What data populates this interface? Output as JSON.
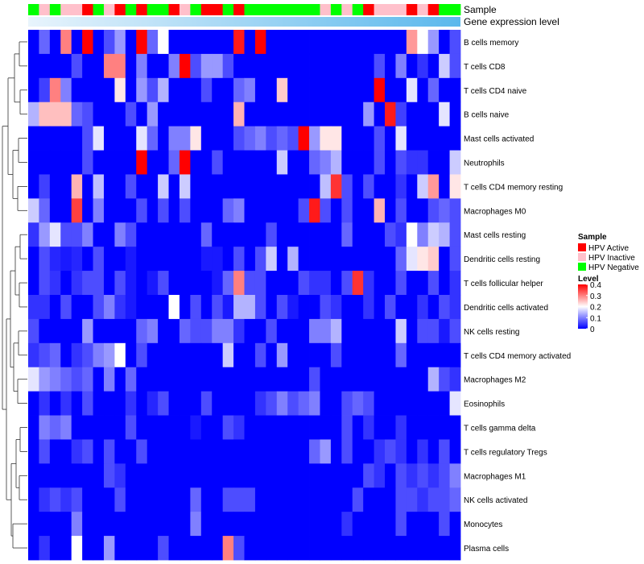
{
  "chart_data": {
    "type": "heatmap",
    "annotation_tracks": [
      "Sample",
      "Gene expression level"
    ],
    "legend_sample": {
      "title": "Sample",
      "entries": [
        {
          "label": "HPV Active",
          "color": "#ff0000"
        },
        {
          "label": "HPV Inactive",
          "color": "#ffc0cb"
        },
        {
          "label": "HPV Negative",
          "color": "#00ff00"
        }
      ]
    },
    "legend_level": {
      "title": "Level",
      "ticks": [
        "0.4",
        "0.3",
        "0.2",
        "0.1",
        "0"
      ],
      "tick_values": [
        0.4,
        0.3,
        0.2,
        0.1,
        0
      ],
      "range": [
        0,
        0.4
      ],
      "colors": [
        "#0000ff",
        "#ffffff",
        "#ff0000"
      ]
    },
    "sample_groups": [
      "N",
      "I",
      "N",
      "I",
      "I",
      "A",
      "N",
      "I",
      "A",
      "N",
      "A",
      "N",
      "N",
      "A",
      "I",
      "N",
      "A",
      "A",
      "N",
      "A",
      "N",
      "N",
      "N",
      "N",
      "N",
      "N",
      "N",
      "I",
      "N",
      "I",
      "N",
      "A",
      "I",
      "I",
      "I",
      "A",
      "I",
      "A",
      "N",
      "N"
    ],
    "expression_gradient": [
      "#e8f4fc",
      "#5bb8ec"
    ],
    "row_labels": [
      "B cells memory",
      "T cells CD8",
      "T cells CD4 naive",
      "B cells naive",
      "Mast cells activated",
      "Neutrophils",
      "T cells CD4 memory resting",
      "Macrophages M0",
      "Mast cells resting",
      "Dendritic cells resting",
      "T cells follicular helper",
      "Dendritic cells activated",
      "NK cells resting",
      "T cells CD4 memory activated",
      "Macrophages M2",
      "Eosinophils",
      "T cells gamma delta",
      "T cells regulatory  Tregs",
      "Macrophages M1",
      "NK cells activated",
      "Monocytes",
      "Plasma cells"
    ],
    "values": [
      [
        0,
        0.08,
        0,
        0.3,
        0,
        0.4,
        0,
        0.06,
        0.12,
        0,
        0.4,
        0.08,
        0.2,
        0,
        0,
        0,
        0,
        0,
        0,
        0.38,
        0,
        0.4,
        0,
        0,
        0,
        0,
        0,
        0,
        0,
        0,
        0,
        0,
        0,
        0,
        0,
        0.28,
        0.2,
        0.12,
        0,
        0.06
      ],
      [
        0,
        0,
        0,
        0,
        0.06,
        0,
        0,
        0.3,
        0.3,
        0,
        0.1,
        0,
        0,
        0.1,
        0.4,
        0.06,
        0.12,
        0.12,
        0.06,
        0,
        0,
        0,
        0,
        0,
        0,
        0,
        0,
        0,
        0,
        0,
        0,
        0,
        0.06,
        0,
        0.1,
        0,
        0.04,
        0,
        0.16,
        0.06
      ],
      [
        0,
        0.05,
        0.3,
        0.1,
        0,
        0,
        0,
        0,
        0.22,
        0,
        0.12,
        0.06,
        0.14,
        0,
        0,
        0,
        0.06,
        0,
        0,
        0.08,
        0.1,
        0,
        0,
        0.24,
        0,
        0,
        0,
        0,
        0,
        0,
        0,
        0,
        0.4,
        0,
        0,
        0.18,
        0,
        0.08,
        0,
        0
      ],
      [
        0.14,
        0.25,
        0.25,
        0.25,
        0.08,
        0.06,
        0,
        0,
        0,
        0.06,
        0,
        0.12,
        0,
        0,
        0,
        0,
        0,
        0,
        0,
        0.26,
        0,
        0,
        0,
        0,
        0,
        0,
        0,
        0,
        0,
        0,
        0,
        0.12,
        0,
        0.38,
        0.05,
        0,
        0,
        0,
        0.18,
        0
      ],
      [
        0,
        0,
        0,
        0,
        0,
        0.06,
        0.18,
        0,
        0,
        0,
        0.18,
        0.08,
        0,
        0.1,
        0.1,
        0.22,
        0,
        0,
        0,
        0.06,
        0.08,
        0.1,
        0.06,
        0.08,
        0.06,
        0.4,
        0.12,
        0.22,
        0.22,
        0,
        0,
        0,
        0.06,
        0,
        0.18,
        0,
        0,
        0,
        0,
        0
      ],
      [
        0,
        0,
        0,
        0,
        0,
        0.06,
        0,
        0,
        0,
        0,
        0.4,
        0,
        0,
        0.08,
        0.4,
        0,
        0,
        0.06,
        0,
        0,
        0,
        0,
        0,
        0.16,
        0,
        0,
        0.08,
        0.1,
        0.14,
        0,
        0,
        0,
        0.06,
        0,
        0.06,
        0.04,
        0.04,
        0,
        0,
        0.16
      ],
      [
        0,
        0.05,
        0,
        0,
        0.26,
        0,
        0.15,
        0,
        0,
        0.06,
        0,
        0,
        0.16,
        0,
        0.16,
        0,
        0,
        0,
        0,
        0,
        0,
        0,
        0,
        0,
        0,
        0,
        0,
        0.15,
        0.36,
        0.06,
        0,
        0.06,
        0,
        0,
        0.04,
        0,
        0.16,
        0.28,
        0,
        0.22
      ],
      [
        0.16,
        0.08,
        0,
        0,
        0.35,
        0,
        0.1,
        0,
        0,
        0,
        0.06,
        0,
        0.06,
        0,
        0.06,
        0,
        0,
        0,
        0.08,
        0.1,
        0,
        0,
        0,
        0,
        0,
        0.06,
        0.38,
        0.06,
        0,
        0.06,
        0,
        0,
        0.26,
        0,
        0.06,
        0,
        0,
        0.06,
        0.08,
        0.06
      ],
      [
        0.04,
        0.12,
        0.18,
        0.06,
        0.06,
        0.1,
        0,
        0,
        0.1,
        0.06,
        0,
        0,
        0,
        0,
        0,
        0,
        0.08,
        0,
        0,
        0,
        0,
        0,
        0.06,
        0,
        0,
        0,
        0,
        0,
        0,
        0.08,
        0,
        0,
        0,
        0.06,
        0.04,
        0.2,
        0.1,
        0.16,
        0.14,
        0.06
      ],
      [
        0,
        0.06,
        0.03,
        0.02,
        0.03,
        0,
        0.06,
        0,
        0,
        0.02,
        0,
        0,
        0,
        0,
        0,
        0,
        0.02,
        0.02,
        0,
        0.06,
        0,
        0.06,
        0.16,
        0,
        0.14,
        0,
        0,
        0,
        0,
        0,
        0,
        0,
        0,
        0,
        0.08,
        0.18,
        0.22,
        0.24,
        0,
        0.06
      ],
      [
        0,
        0.06,
        0.04,
        0,
        0.04,
        0.06,
        0.06,
        0,
        0.06,
        0.02,
        0,
        0.02,
        0.06,
        0,
        0,
        0,
        0,
        0.02,
        0.08,
        0.3,
        0.06,
        0.06,
        0,
        0,
        0,
        0.06,
        0.04,
        0.04,
        0,
        0.06,
        0.36,
        0.04,
        0,
        0,
        0.06,
        0,
        0,
        0.06,
        0,
        0.04
      ],
      [
        0.04,
        0.04,
        0,
        0.06,
        0,
        0,
        0.06,
        0.1,
        0.04,
        0.02,
        0,
        0,
        0,
        0.2,
        0,
        0.06,
        0,
        0.06,
        0.02,
        0.14,
        0.14,
        0.06,
        0,
        0.06,
        0.02,
        0,
        0,
        0.06,
        0.04,
        0,
        0,
        0.04,
        0,
        0.06,
        0,
        0,
        0.04,
        0,
        0.06,
        0.04
      ],
      [
        0.06,
        0,
        0,
        0,
        0,
        0.12,
        0,
        0,
        0,
        0,
        0.08,
        0.1,
        0,
        0,
        0.08,
        0.06,
        0.06,
        0.1,
        0.1,
        0.04,
        0,
        0,
        0.06,
        0,
        0,
        0,
        0.1,
        0.1,
        0.14,
        0,
        0,
        0,
        0,
        0,
        0.16,
        0,
        0.06,
        0.06,
        0.02,
        0.06
      ],
      [
        0.04,
        0.06,
        0.08,
        0,
        0.04,
        0.06,
        0.1,
        0.12,
        0.2,
        0,
        0.06,
        0,
        0,
        0,
        0,
        0,
        0,
        0,
        0.16,
        0,
        0,
        0.06,
        0,
        0.12,
        0,
        0,
        0,
        0,
        0.06,
        0,
        0,
        0,
        0,
        0,
        0.08,
        0,
        0,
        0,
        0,
        0
      ],
      [
        0.18,
        0.12,
        0.1,
        0.08,
        0.06,
        0.08,
        0,
        0.1,
        0,
        0.08,
        0,
        0,
        0,
        0,
        0,
        0,
        0,
        0,
        0,
        0,
        0,
        0,
        0,
        0,
        0,
        0,
        0.06,
        0,
        0,
        0,
        0,
        0,
        0,
        0,
        0,
        0,
        0,
        0.14,
        0.06,
        0.04
      ],
      [
        0,
        0.04,
        0,
        0.04,
        0,
        0.06,
        0,
        0,
        0,
        0.04,
        0,
        0.03,
        0.06,
        0,
        0,
        0,
        0.06,
        0,
        0,
        0,
        0,
        0.04,
        0.06,
        0.1,
        0.06,
        0.08,
        0.1,
        0,
        0,
        0.06,
        0.08,
        0.06,
        0,
        0,
        0,
        0,
        0,
        0,
        0,
        0.18
      ],
      [
        0,
        0.1,
        0.08,
        0.1,
        0,
        0,
        0,
        0,
        0,
        0.06,
        0,
        0,
        0,
        0,
        0,
        0.02,
        0,
        0,
        0.06,
        0.04,
        0,
        0,
        0,
        0,
        0,
        0,
        0,
        0,
        0,
        0.06,
        0,
        0.04,
        0,
        0,
        0.04,
        0,
        0,
        0,
        0,
        0
      ],
      [
        0,
        0.06,
        0,
        0,
        0.04,
        0.06,
        0,
        0.06,
        0,
        0,
        0.06,
        0,
        0,
        0,
        0,
        0,
        0,
        0,
        0,
        0,
        0,
        0,
        0,
        0,
        0,
        0,
        0.08,
        0.12,
        0,
        0.06,
        0,
        0,
        0.04,
        0.06,
        0.04,
        0,
        0.04,
        0,
        0.06,
        0
      ],
      [
        0,
        0,
        0,
        0,
        0,
        0,
        0,
        0.06,
        0.04,
        0,
        0,
        0,
        0,
        0,
        0,
        0,
        0,
        0,
        0,
        0,
        0,
        0,
        0,
        0,
        0,
        0,
        0,
        0,
        0,
        0,
        0,
        0.06,
        0.04,
        0,
        0.06,
        0.04,
        0.06,
        0.04,
        0.06,
        0.1
      ],
      [
        0,
        0.04,
        0.06,
        0.04,
        0.06,
        0,
        0,
        0,
        0.06,
        0,
        0,
        0,
        0,
        0,
        0,
        0.08,
        0,
        0,
        0.06,
        0.06,
        0.06,
        0,
        0,
        0,
        0,
        0,
        0,
        0,
        0,
        0,
        0.06,
        0,
        0,
        0,
        0.06,
        0.06,
        0.04,
        0.06,
        0.06,
        0.08
      ],
      [
        0,
        0,
        0,
        0,
        0.1,
        0,
        0,
        0,
        0,
        0,
        0,
        0,
        0,
        0,
        0,
        0.1,
        0,
        0,
        0,
        0,
        0,
        0,
        0,
        0,
        0,
        0,
        0,
        0,
        0,
        0.04,
        0,
        0,
        0,
        0,
        0.06,
        0,
        0,
        0,
        0.06,
        0
      ],
      [
        0,
        0.04,
        0,
        0,
        0.2,
        0,
        0,
        0.12,
        0,
        0,
        0,
        0,
        0.06,
        0,
        0,
        0,
        0,
        0,
        0.3,
        0.06,
        0,
        0,
        0,
        0,
        0,
        0,
        0,
        0,
        0,
        0,
        0,
        0,
        0,
        0,
        0,
        0,
        0,
        0,
        0,
        0
      ]
    ]
  }
}
